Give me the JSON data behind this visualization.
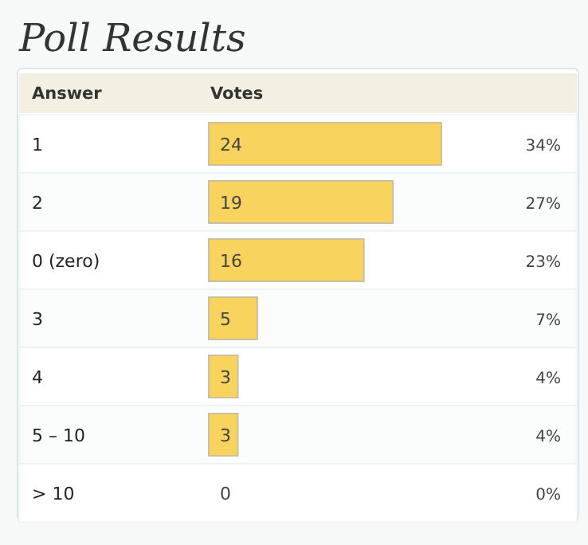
{
  "chart_data": {
    "type": "bar",
    "orientation": "horizontal",
    "title": "Poll Results",
    "ylabel": "Answer",
    "xlabel": "Votes",
    "categories": [
      "1",
      "2",
      "0 (zero)",
      "3",
      "4",
      "5 – 10",
      "> 10"
    ],
    "values": [
      24,
      19,
      16,
      5,
      3,
      3,
      0
    ],
    "color": "#f8d35e",
    "data_labels": true,
    "annotations": [
      "34%",
      "27%",
      "23%",
      "7%",
      "4%",
      "4%",
      "0%"
    ]
  }
}
